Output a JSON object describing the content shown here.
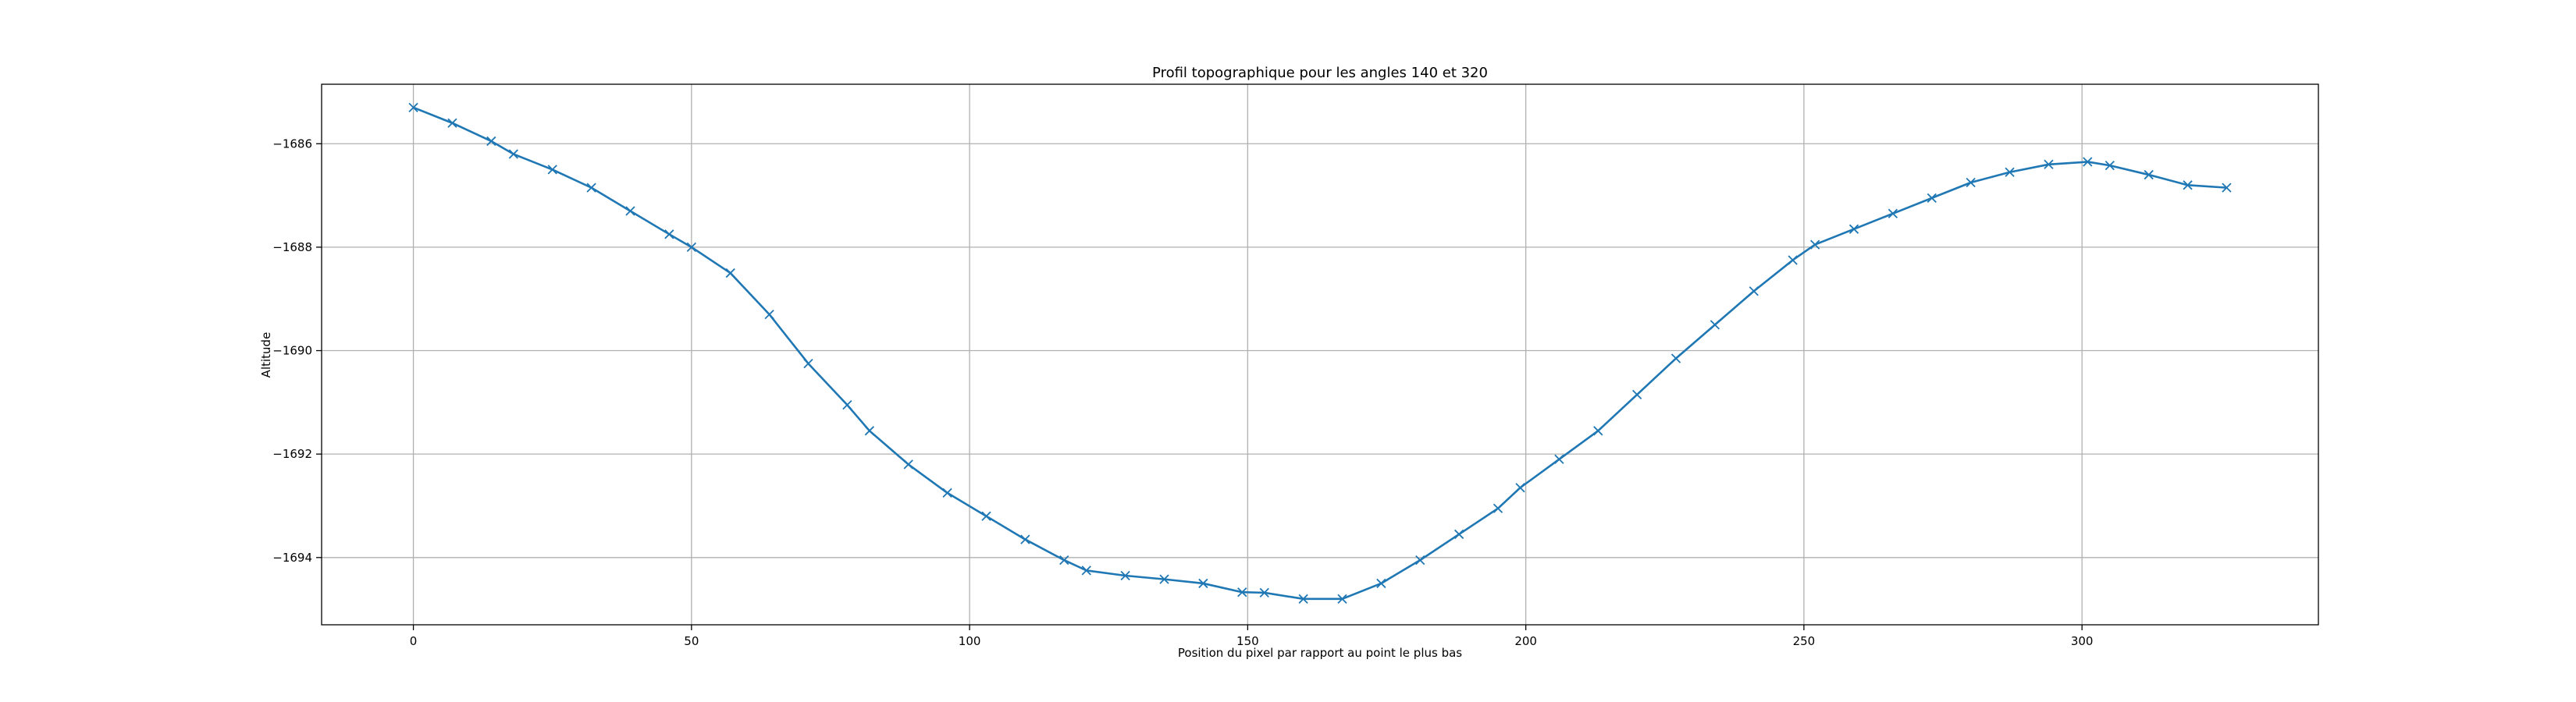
{
  "chart_data": {
    "type": "line",
    "title": "Profil topographique pour les angles 140 et 320",
    "xlabel": "Position du pixel par rapport au point le plus bas",
    "ylabel": "Altitude",
    "xlim": [
      -16.5,
      342.5
    ],
    "ylim": [
      -1695.3,
      -1684.85
    ],
    "xticks": [
      0,
      50,
      100,
      150,
      200,
      250,
      300
    ],
    "xtick_labels": [
      "0",
      "50",
      "100",
      "150",
      "200",
      "250",
      "300"
    ],
    "yticks": [
      -1686,
      -1688,
      -1690,
      -1692,
      -1694
    ],
    "ytick_labels": [
      "−1686",
      "−1688",
      "−1690",
      "−1692",
      "−1694"
    ],
    "grid": true,
    "marker": "x",
    "color": "#1f77b4",
    "series": [
      {
        "x": [
          0,
          7,
          14,
          18,
          25,
          32,
          39,
          46,
          50,
          57,
          64,
          71,
          78,
          82,
          89,
          96,
          103,
          110,
          117,
          121,
          128,
          135,
          142,
          149,
          153,
          160,
          167,
          174,
          181,
          188,
          195,
          199,
          206,
          213,
          220,
          227,
          234,
          241,
          248,
          252,
          259,
          266,
          273,
          280,
          287,
          294,
          301,
          305,
          312,
          319,
          326
        ],
        "y": [
          -1685.3,
          -1685.6,
          -1685.95,
          -1686.2,
          -1686.5,
          -1686.85,
          -1687.3,
          -1687.75,
          -1688.0,
          -1688.5,
          -1689.3,
          -1690.25,
          -1691.05,
          -1691.55,
          -1692.2,
          -1692.75,
          -1693.2,
          -1693.65,
          -1694.05,
          -1694.25,
          -1694.35,
          -1694.42,
          -1694.5,
          -1694.67,
          -1694.68,
          -1694.8,
          -1694.8,
          -1694.5,
          -1694.05,
          -1693.55,
          -1693.05,
          -1692.65,
          -1692.1,
          -1691.55,
          -1690.85,
          -1690.15,
          -1689.5,
          -1688.85,
          -1688.25,
          -1687.95,
          -1687.65,
          -1687.35,
          -1687.05,
          -1686.75,
          -1686.55,
          -1686.4,
          -1686.35,
          -1686.42,
          -1686.6,
          -1686.8,
          -1686.85
        ]
      }
    ]
  }
}
